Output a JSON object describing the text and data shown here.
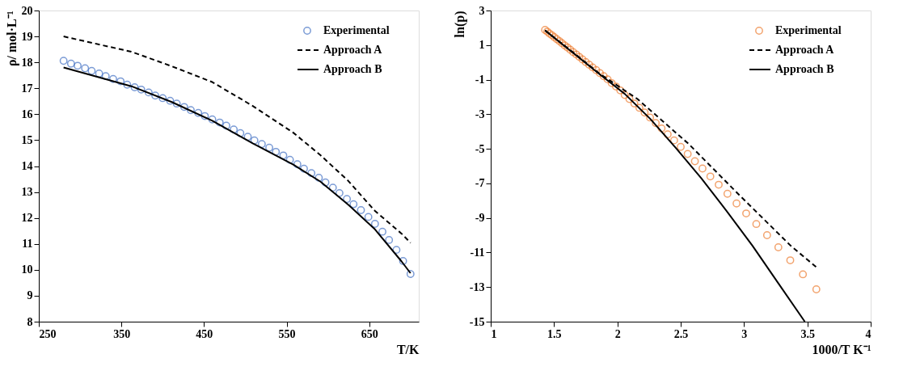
{
  "chart_data": [
    {
      "type": "line",
      "xlabel": "T/K",
      "ylabel": "ρ/ mol·L⁻¹",
      "xlim": [
        250,
        710
      ],
      "ylim": [
        8,
        20
      ],
      "xticks": [
        250,
        350,
        450,
        550,
        650
      ],
      "yticks": [
        8,
        9,
        10,
        11,
        12,
        13,
        14,
        15,
        16,
        17,
        18,
        19,
        20
      ],
      "grid": false,
      "legend": "top right",
      "series": [
        {
          "name": "Experimental",
          "type": "scatter",
          "marker": "circle",
          "color": "#4472c4",
          "x": [
            280,
            289,
            297,
            306,
            314,
            323,
            331,
            340,
            349,
            357,
            366,
            374,
            383,
            391,
            400,
            409,
            417,
            426,
            434,
            443,
            451,
            460,
            469,
            477,
            486,
            494,
            503,
            511,
            520,
            529,
            537,
            546,
            554,
            563,
            571,
            580,
            589,
            597,
            606,
            614,
            623,
            631,
            640,
            649,
            657,
            666,
            674,
            683,
            691,
            700
          ],
          "values": [
            18.06,
            17.95,
            17.87,
            17.77,
            17.67,
            17.57,
            17.47,
            17.36,
            17.27,
            17.14,
            17.04,
            16.95,
            16.84,
            16.72,
            16.62,
            16.52,
            16.41,
            16.28,
            16.16,
            16.05,
            15.93,
            15.8,
            15.68,
            15.56,
            15.41,
            15.27,
            15.13,
            14.99,
            14.85,
            14.71,
            14.55,
            14.41,
            14.24,
            14.07,
            13.9,
            13.73,
            13.55,
            13.37,
            13.17,
            12.96,
            12.73,
            12.53,
            12.3,
            12.04,
            11.77,
            11.47,
            11.15,
            10.77,
            10.34,
            9.84
          ]
        },
        {
          "name": "Approach A",
          "type": "line",
          "line_style": "dashed",
          "color": "#000000",
          "x": [
            280,
            362,
            411,
            460,
            509,
            558,
            591,
            624,
            657,
            689,
            700
          ],
          "values": [
            19.0,
            18.41,
            17.85,
            17.24,
            16.32,
            15.29,
            14.42,
            13.45,
            12.27,
            11.4,
            11.04
          ]
        },
        {
          "name": "Approach B",
          "type": "line",
          "line_style": "solid",
          "color": "#000000",
          "x": [
            280,
            362,
            411,
            460,
            509,
            558,
            591,
            624,
            657,
            689,
            700
          ],
          "values": [
            17.8,
            17.08,
            16.47,
            15.75,
            14.88,
            14.06,
            13.4,
            12.53,
            11.56,
            10.33,
            9.87
          ]
        }
      ]
    },
    {
      "type": "line",
      "xlabel": "1000/T K⁻¹",
      "ylabel": "ln(p)",
      "xlim": [
        1,
        4
      ],
      "ylim": [
        -15,
        3
      ],
      "xticks": [
        1,
        1.5,
        2,
        2.5,
        3,
        3.5,
        4
      ],
      "yticks": [
        -15,
        -13,
        -11,
        -9,
        -7,
        -5,
        -3,
        -1,
        1,
        3
      ],
      "grid": false,
      "legend": "top right",
      "series": [
        {
          "name": "Experimental",
          "type": "scatter",
          "marker": "circle",
          "color": "#ed7d31",
          "x": [
            1.429,
            1.446,
            1.464,
            1.483,
            1.502,
            1.522,
            1.542,
            1.563,
            1.584,
            1.606,
            1.628,
            1.651,
            1.675,
            1.699,
            1.724,
            1.75,
            1.777,
            1.804,
            1.833,
            1.862,
            1.892,
            1.923,
            1.955,
            1.989,
            2.023,
            2.058,
            2.095,
            2.134,
            2.174,
            2.215,
            2.258,
            2.303,
            2.349,
            2.397,
            2.448,
            2.5,
            2.555,
            2.612,
            2.672,
            2.734,
            2.8,
            2.869,
            2.941,
            3.017,
            3.097,
            3.182,
            3.271,
            3.365,
            3.465,
            3.571
          ],
          "values": [
            1.88,
            1.78,
            1.67,
            1.57,
            1.46,
            1.34,
            1.23,
            1.11,
            0.98,
            0.86,
            0.73,
            0.59,
            0.46,
            0.32,
            0.17,
            0.02,
            -0.13,
            -0.29,
            -0.45,
            -0.62,
            -0.8,
            -0.98,
            -1.2,
            -1.4,
            -1.62,
            -1.89,
            -2.12,
            -2.38,
            -2.63,
            -2.9,
            -3.19,
            -3.51,
            -3.82,
            -4.16,
            -4.51,
            -4.89,
            -5.3,
            -5.72,
            -6.14,
            -6.6,
            -7.08,
            -7.6,
            -8.16,
            -8.74,
            -9.35,
            -10.0,
            -10.7,
            -11.45,
            -12.26,
            -13.13
          ]
        },
        {
          "name": "Approach A",
          "type": "line",
          "line_style": "dashed",
          "color": "#000000",
          "x": [
            1.429,
            1.655,
            1.857,
            2.159,
            2.563,
            2.966,
            3.369,
            3.581
          ],
          "values": [
            1.85,
            0.55,
            -0.64,
            -2.12,
            -4.72,
            -7.7,
            -10.61,
            -11.91
          ]
        },
        {
          "name": "Approach B",
          "type": "line",
          "line_style": "solid",
          "color": "#000000",
          "x": [
            1.429,
            1.655,
            1.857,
            2.058,
            2.26,
            2.462,
            2.663,
            2.865,
            3.067,
            3.268,
            3.48
          ],
          "values": [
            1.85,
            0.52,
            -0.67,
            -1.82,
            -3.27,
            -4.95,
            -6.71,
            -8.62,
            -10.61,
            -12.75,
            -15.0
          ]
        }
      ]
    }
  ]
}
